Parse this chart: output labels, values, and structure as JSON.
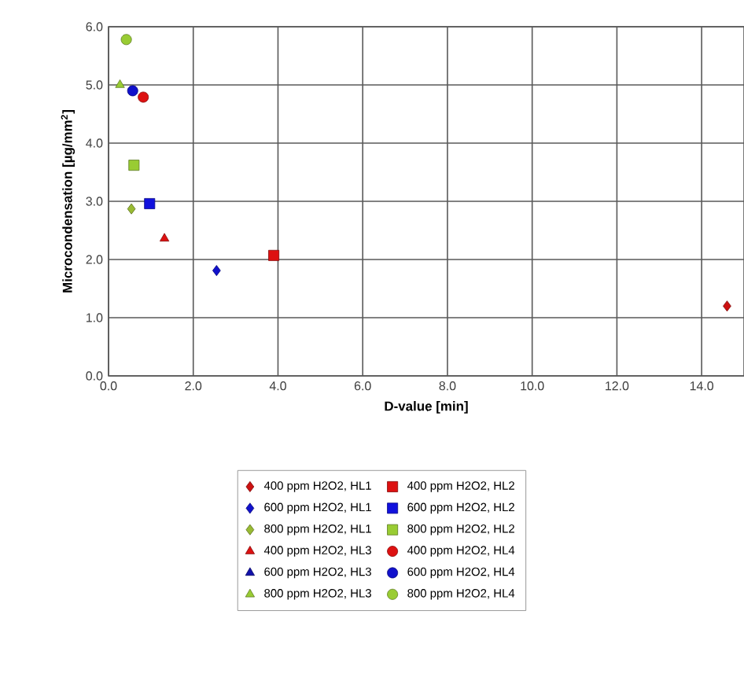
{
  "chart_data": {
    "type": "scatter",
    "xlabel": "D-value [min]",
    "ylabel": "Microcondensation [µg/mm$^{2}$]",
    "xlim": [
      0,
      15
    ],
    "xticks": [
      {
        "value": 0,
        "label": "0.0"
      },
      {
        "value": 2,
        "label": "2.0"
      },
      {
        "value": 4,
        "label": "4.0"
      },
      {
        "value": 6,
        "label": "6.0"
      },
      {
        "value": 8,
        "label": "8.0"
      },
      {
        "value": 10,
        "label": "10.0"
      },
      {
        "value": 12,
        "label": "12.0"
      },
      {
        "value": 14,
        "label": "14.0"
      }
    ],
    "ylim": [
      0,
      6
    ],
    "yticks": [
      {
        "value": 0,
        "label": "0.0"
      },
      {
        "value": 1,
        "label": "1.0"
      },
      {
        "value": 2,
        "label": "2.0"
      },
      {
        "value": 3,
        "label": "3.0"
      },
      {
        "value": 4,
        "label": "4.0"
      },
      {
        "value": 5,
        "label": "5.0"
      },
      {
        "value": 6,
        "label": "6.0"
      }
    ],
    "grid": true,
    "legend": "bottom",
    "series": [
      {
        "name": "400 ppm H2O2, HL1",
        "color": "#cc1111",
        "marker": "diamond",
        "x": [
          14.6
        ],
        "values": [
          1.2
        ]
      },
      {
        "name": "400 ppm H2O2, HL2",
        "color": "#dd1111",
        "marker": "square",
        "x": [
          3.9
        ],
        "values": [
          2.07
        ]
      },
      {
        "name": "600 ppm H2O2, HL1",
        "color": "#1111cc",
        "marker": "diamond",
        "x": [
          2.55
        ],
        "values": [
          1.81
        ]
      },
      {
        "name": "600 ppm H2O2, HL2",
        "color": "#1111dd",
        "marker": "square",
        "x": [
          0.97
        ],
        "values": [
          2.96
        ]
      },
      {
        "name": "800 ppm H2O2, HL1",
        "color": "#99bb33",
        "marker": "diamond",
        "x": [
          0.54
        ],
        "values": [
          2.87
        ]
      },
      {
        "name": "800 ppm H2O2, HL2",
        "color": "#99cc33",
        "marker": "square",
        "x": [
          0.6
        ],
        "values": [
          3.62
        ]
      },
      {
        "name": "400 ppm H2O2, HL3",
        "color": "#dd1111",
        "marker": "triangle",
        "x": [
          1.32
        ],
        "values": [
          2.36
        ]
      },
      {
        "name": "400 ppm H2O2, HL4",
        "color": "#dd1111",
        "marker": "circle",
        "x": [
          0.82
        ],
        "values": [
          4.79
        ]
      },
      {
        "name": "600 ppm H2O2, HL3",
        "color": "#1111aa",
        "marker": "triangle",
        "x": [
          null
        ],
        "values": [
          null
        ]
      },
      {
        "name": "600 ppm H2O2, HL4",
        "color": "#1111cc",
        "marker": "circle",
        "x": [
          0.57
        ],
        "values": [
          4.9
        ]
      },
      {
        "name": "800 ppm H2O2, HL3",
        "color": "#99cc33",
        "marker": "triangle",
        "x": [
          0.27
        ],
        "values": [
          5.0
        ]
      },
      {
        "name": "800 ppm H2O2, HL4",
        "color": "#99cc33",
        "marker": "circle",
        "x": [
          0.42
        ],
        "values": [
          5.78
        ]
      }
    ]
  }
}
